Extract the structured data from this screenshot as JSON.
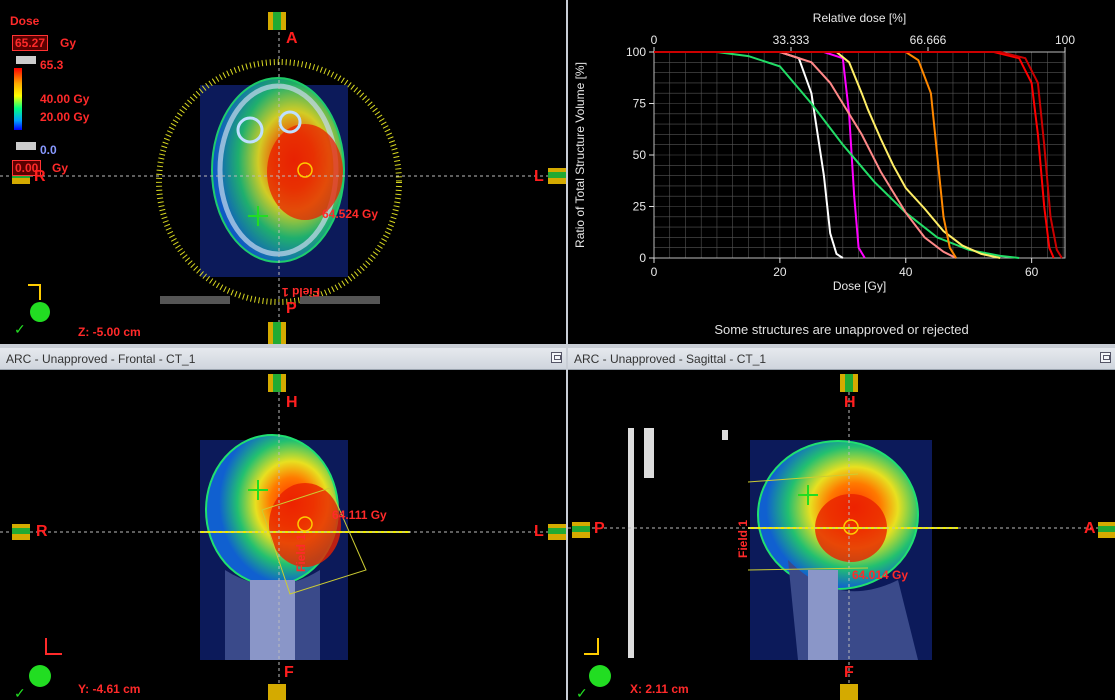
{
  "axial": {
    "dose_title": "Dose",
    "max_value": "65.27",
    "unit": "Gy",
    "legend_top": "65.3",
    "legend_mid1": "40.00 Gy",
    "legend_mid2": "20.00 Gy",
    "legend_bottom": "0.0",
    "min_value": "0.00",
    "point_dose": "64.524 Gy",
    "field_label": "Field 1",
    "z_position": "Z: -5.00 cm",
    "orient_top": "A",
    "orient_bottom": "P",
    "orient_left": "R",
    "orient_right": "L"
  },
  "dvh": {
    "status": "Some structures are unapproved or rejected",
    "chart_data": {
      "type": "line",
      "xlabel": "Dose [Gy]",
      "ylabel": "Ratio of Total Structure Volume [%]",
      "top_xlabel": "Relative dose [%]",
      "xlim": [
        0,
        65.3
      ],
      "ylim": [
        0,
        100
      ],
      "x_ticks": [
        "0",
        "20",
        "40",
        "60"
      ],
      "y_ticks": [
        "0",
        "25",
        "50",
        "75",
        "100"
      ],
      "top_ticks": [
        "0",
        "33.333",
        "66.666",
        "100"
      ],
      "grid": true,
      "series": [
        {
          "color": "#ffffff",
          "x": [
            0,
            20,
            23,
            25,
            27,
            28,
            29,
            30
          ],
          "y": [
            100,
            100,
            97,
            80,
            40,
            12,
            2,
            0
          ]
        },
        {
          "color": "#ff00ff",
          "x": [
            0,
            27,
            30,
            31,
            31.8,
            32.5,
            33.5
          ],
          "y": [
            100,
            100,
            97,
            70,
            30,
            5,
            0
          ]
        },
        {
          "color": "#22dd66",
          "x": [
            0,
            10,
            15,
            20,
            25,
            30,
            35,
            40,
            45,
            50,
            55,
            58
          ],
          "y": [
            100,
            100,
            98,
            93,
            75,
            55,
            37,
            22,
            10,
            4,
            1,
            0
          ]
        },
        {
          "color": "#ff8888",
          "x": [
            0,
            20,
            25,
            28,
            30,
            33,
            36,
            38,
            40,
            43,
            46,
            48
          ],
          "y": [
            100,
            100,
            95,
            85,
            75,
            60,
            42,
            32,
            22,
            10,
            3,
            0
          ]
        },
        {
          "color": "#ffee66",
          "x": [
            0,
            29,
            31,
            33,
            34,
            36,
            38,
            40,
            43,
            46,
            49,
            52,
            55
          ],
          "y": [
            100,
            100,
            95,
            80,
            72,
            58,
            45,
            34,
            24,
            13,
            6,
            2,
            0
          ]
        },
        {
          "color": "#ff8800",
          "x": [
            0,
            40,
            42,
            44,
            45,
            46,
            47,
            48
          ],
          "y": [
            100,
            100,
            96,
            80,
            50,
            20,
            5,
            0
          ]
        },
        {
          "color": "#ff0000",
          "x": [
            0,
            54,
            58,
            60,
            61,
            62,
            62.8,
            63.5
          ],
          "y": [
            100,
            100,
            97,
            85,
            60,
            25,
            5,
            0
          ]
        },
        {
          "color": "#cc0000",
          "x": [
            0,
            55,
            59,
            61,
            62,
            63,
            64,
            64.8
          ],
          "y": [
            100,
            100,
            97,
            85,
            55,
            20,
            4,
            0
          ]
        }
      ]
    }
  },
  "frontal": {
    "title": "ARC  - Unapproved - Frontal - CT_1",
    "point_dose": "64.111 Gy",
    "field_label": "Field 1",
    "y_position": "Y: -4.61 cm",
    "orient_top": "H",
    "orient_bottom": "F",
    "orient_left": "R",
    "orient_right": "L"
  },
  "sagittal": {
    "title": "ARC  - Unapproved - Sagittal - CT_1",
    "point_dose": "64.014 Gy",
    "field_label": "Field 1",
    "x_position": "X: 2.11 cm",
    "orient_top": "H",
    "orient_bottom": "F",
    "orient_left": "P",
    "orient_right": "A"
  }
}
